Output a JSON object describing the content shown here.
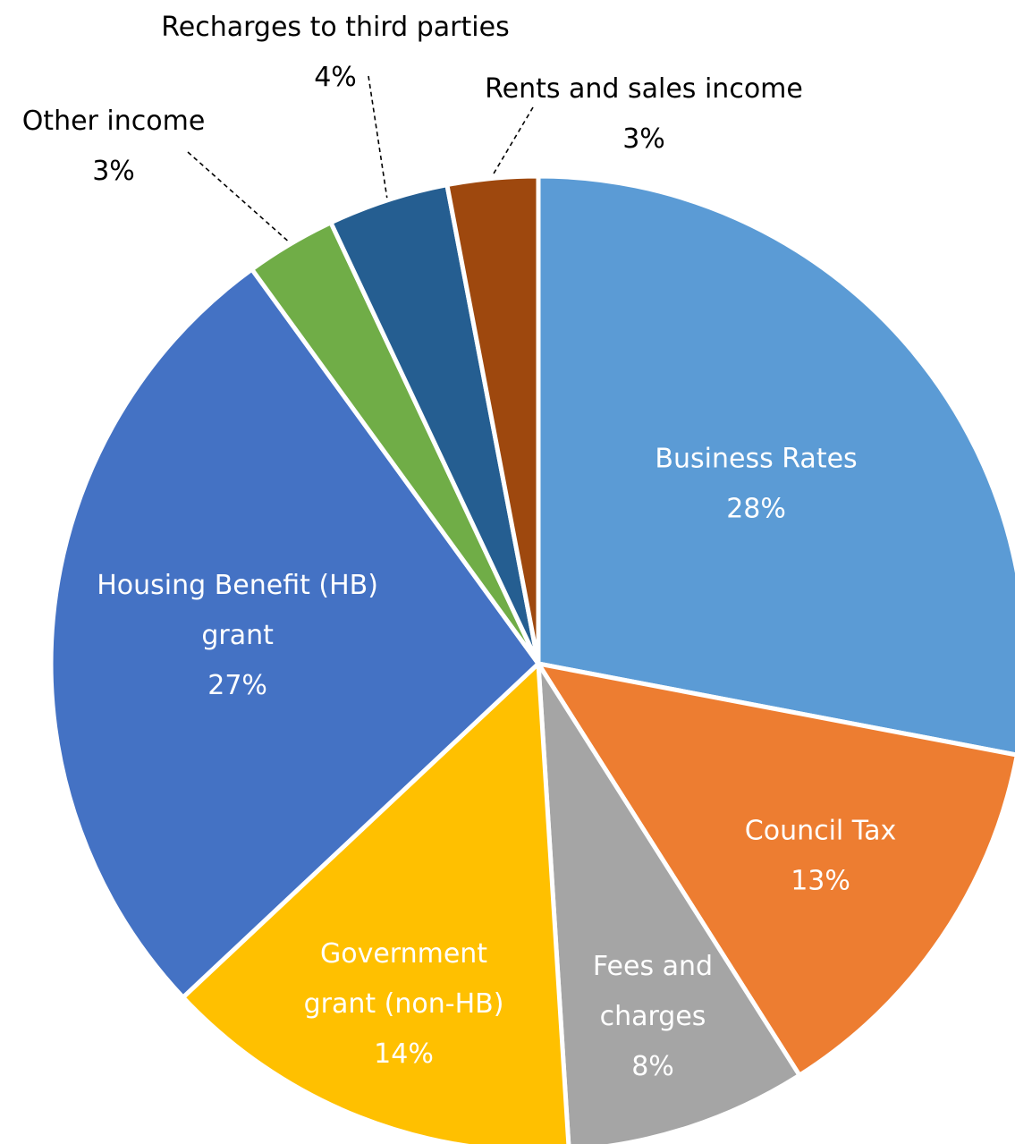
{
  "chart_data": {
    "type": "pie",
    "title": "",
    "slices": [
      {
        "label_lines": [
          "Business Rates"
        ],
        "value": 28,
        "value_label": "28%",
        "color": "#5B9BD5"
      },
      {
        "label_lines": [
          "Council Tax"
        ],
        "value": 13,
        "value_label": "13%",
        "color": "#ED7D31"
      },
      {
        "label_lines": [
          "Fees and",
          "charges"
        ],
        "value": 8,
        "value_label": "8%",
        "color": "#A5A5A5"
      },
      {
        "label_lines": [
          "Government",
          "grant (non-HB)"
        ],
        "value": 14,
        "value_label": "14%",
        "color": "#FFC000"
      },
      {
        "label_lines": [
          "Housing Benefit (HB)",
          "grant"
        ],
        "value": 27,
        "value_label": "27%",
        "color": "#4472C4"
      },
      {
        "label_lines": [
          "Other income"
        ],
        "value": 3,
        "value_label": "3%",
        "color": "#70AD47"
      },
      {
        "label_lines": [
          "Recharges to third parties"
        ],
        "value": 4,
        "value_label": "4%",
        "color": "#255E91"
      },
      {
        "label_lines": [
          "Rents and sales income"
        ],
        "value": 3,
        "value_label": "3%",
        "color": "#9E480E"
      }
    ]
  }
}
